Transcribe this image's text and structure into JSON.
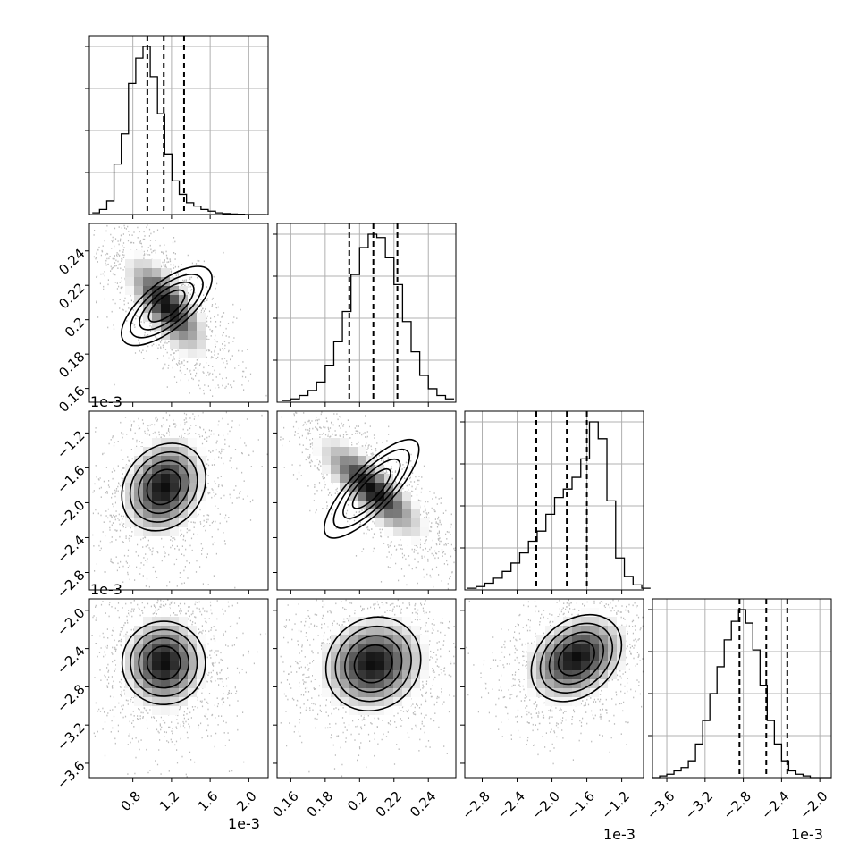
{
  "figure": {
    "type": "corner plot",
    "colors": {
      "hist": "#000000",
      "points": "#9a9a9a",
      "grid": "#b0b0b0",
      "density_dark": "#000000",
      "density_light": "#ffffff"
    }
  },
  "chart_data": [
    {
      "type": "histogram",
      "panel": "diag-0",
      "xlim": [
        0.35,
        2.2
      ],
      "scale": "1e-3",
      "x_ticks": [
        0.8,
        1.2,
        1.6,
        2.0
      ],
      "bin_edges_start": 0.38,
      "bin_width": 0.075,
      "counts": [
        1,
        3,
        8,
        30,
        48,
        78,
        93,
        100,
        82,
        60,
        36,
        20,
        12,
        7,
        5,
        3,
        2,
        1,
        0.6,
        0.3,
        0.2,
        0,
        0,
        0
      ],
      "quantile_lines": [
        0.95,
        1.12,
        1.33
      ],
      "grid": true
    },
    {
      "type": "histogram",
      "panel": "diag-1",
      "xlim": [
        0.152,
        0.256
      ],
      "x_ticks": [
        0.16,
        0.18,
        0.2,
        0.22,
        0.24
      ],
      "y_axis": {
        "ticks": [
          0.16,
          0.18,
          0.2,
          0.22,
          0.24
        ],
        "label_panel": "row-1"
      },
      "bin_edges_start": 0.155,
      "bin_width": 0.005,
      "counts": [
        1,
        2,
        4,
        7,
        12,
        22,
        36,
        54,
        76,
        92,
        100,
        98,
        86,
        70,
        48,
        30,
        16,
        8,
        4,
        2
      ],
      "quantile_lines": [
        0.194,
        0.208,
        0.222
      ],
      "grid": true
    },
    {
      "type": "histogram",
      "panel": "diag-2",
      "xlim": [
        -3.0,
        -0.95
      ],
      "scale": "1e-3",
      "x_ticks": [
        -2.8,
        -2.4,
        -2.0,
        -1.6,
        -1.2
      ],
      "bin_edges_start": -2.97,
      "bin_width": 0.1,
      "counts": [
        1,
        2,
        4,
        7,
        11,
        16,
        22,
        29,
        35,
        45,
        55,
        60,
        67,
        78,
        100,
        90,
        53,
        19,
        8,
        3,
        1
      ],
      "quantile_lines": [
        -2.18,
        -1.83,
        -1.6
      ],
      "grid": true
    },
    {
      "type": "histogram",
      "panel": "diag-3",
      "xlim": [
        -3.75,
        -1.88
      ],
      "scale": "1e-3",
      "x_ticks": [
        -3.6,
        -3.2,
        -2.8,
        -2.4,
        -2.0
      ],
      "bin_edges_start": -3.75,
      "bin_width": 0.075,
      "counts": [
        0,
        1,
        2,
        4,
        6,
        10,
        20,
        34,
        50,
        66,
        82,
        93,
        100,
        92,
        76,
        55,
        34,
        20,
        10,
        4,
        2,
        1,
        0,
        0,
        0
      ],
      "quantile_lines": [
        -2.84,
        -2.56,
        -2.34
      ],
      "grid": true
    },
    {
      "type": "heatmap",
      "panel": "row-1-col-0",
      "x_range": [
        0.35,
        2.2
      ],
      "y_range": [
        0.158,
        0.252
      ],
      "mean": [
        1.15,
        0.208
      ],
      "sd": [
        0.22,
        0.015
      ],
      "corr": -0.7,
      "y_ticks": [
        0.16,
        0.18,
        0.2,
        0.22,
        0.24
      ],
      "scale_label": "1e-3"
    },
    {
      "type": "heatmap",
      "panel": "row-2-col-0",
      "x_range": [
        0.35,
        2.2
      ],
      "y_range": [
        -2.86,
        -1.0
      ],
      "mean": [
        1.12,
        -1.82
      ],
      "sd": [
        0.22,
        0.3
      ],
      "corr": 0.2,
      "y_ticks": [
        -2.8,
        -2.4,
        -2.0,
        -1.6,
        -1.2
      ],
      "scale_label": "1e-3"
    },
    {
      "type": "heatmap",
      "panel": "row-2-col-1",
      "x_range": [
        0.152,
        0.256
      ],
      "y_range": [
        -2.86,
        -1.0
      ],
      "mean": [
        0.207,
        -1.84
      ],
      "sd": [
        0.016,
        0.3
      ],
      "corr": -0.8
    },
    {
      "type": "heatmap",
      "panel": "row-3-col-0",
      "x_range": [
        0.35,
        2.2
      ],
      "y_range": [
        -3.75,
        -1.88
      ],
      "mean": [
        1.12,
        -2.55
      ],
      "sd": [
        0.22,
        0.26
      ],
      "corr": 0,
      "y_ticks": [
        -3.6,
        -3.2,
        -2.8,
        -2.4,
        -2.0
      ],
      "x_ticks": [
        0.8,
        1.2,
        1.6,
        2.0
      ],
      "scale_label": "1e-3"
    },
    {
      "type": "heatmap",
      "panel": "row-3-col-1",
      "x_range": [
        0.152,
        0.256
      ],
      "y_range": [
        -3.75,
        -1.88
      ],
      "mean": [
        0.208,
        -2.56
      ],
      "sd": [
        0.016,
        0.26
      ],
      "corr": 0.1,
      "x_ticks": [
        0.16,
        0.18,
        0.2,
        0.22,
        0.24
      ]
    },
    {
      "type": "heatmap",
      "panel": "row-3-col-2",
      "x_range": [
        -3.0,
        -0.95
      ],
      "y_range": [
        -3.75,
        -1.88
      ],
      "mean": [
        -1.72,
        -2.5
      ],
      "sd": [
        0.3,
        0.24
      ],
      "corr": 0.3,
      "x_ticks": [
        -2.8,
        -2.4,
        -2.0,
        -1.6,
        -1.2
      ],
      "scale_label": "1e-3"
    }
  ],
  "labels": {
    "row1_offset": "1e-3",
    "row2_offset": "1e-3",
    "x0_offset": "1e-3",
    "x2_offset": "1e-3",
    "x3_offset": "1e-3"
  }
}
